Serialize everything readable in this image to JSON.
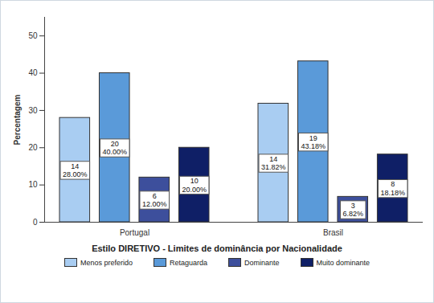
{
  "chart_data": {
    "type": "bar",
    "xlabel": "Estilo DIRETIVO - Limites de dominância por Nacionalidade",
    "ylabel": "Percentagem",
    "categories": [
      "Portugal",
      "Brasil"
    ],
    "series": [
      {
        "name": "Menos preferido",
        "color": "#a9cdf2",
        "values": [
          28,
          31.82
        ],
        "counts": [
          14,
          14
        ],
        "value_labels": [
          "28.00%",
          "31.82%"
        ]
      },
      {
        "name": "Retaguarda",
        "color": "#5a9ad9",
        "values": [
          40,
          43.18
        ],
        "counts": [
          20,
          19
        ],
        "value_labels": [
          "40.00%",
          "43.18%"
        ]
      },
      {
        "name": "Dominante",
        "color": "#3d4f9c",
        "values": [
          12,
          6.82
        ],
        "counts": [
          6,
          3
        ],
        "value_labels": [
          "12.00%",
          "6.82%"
        ]
      },
      {
        "name": "Muito dominante",
        "color": "#0f1f66",
        "values": [
          20,
          18.18
        ],
        "counts": [
          10,
          8
        ],
        "value_labels": [
          "20.00%",
          "18.18%"
        ]
      }
    ],
    "ylim": [
      0,
      55
    ],
    "yticks": [
      0,
      10,
      20,
      30,
      40,
      50
    ],
    "grid": false,
    "legend": "bottom",
    "data_labels": true
  }
}
